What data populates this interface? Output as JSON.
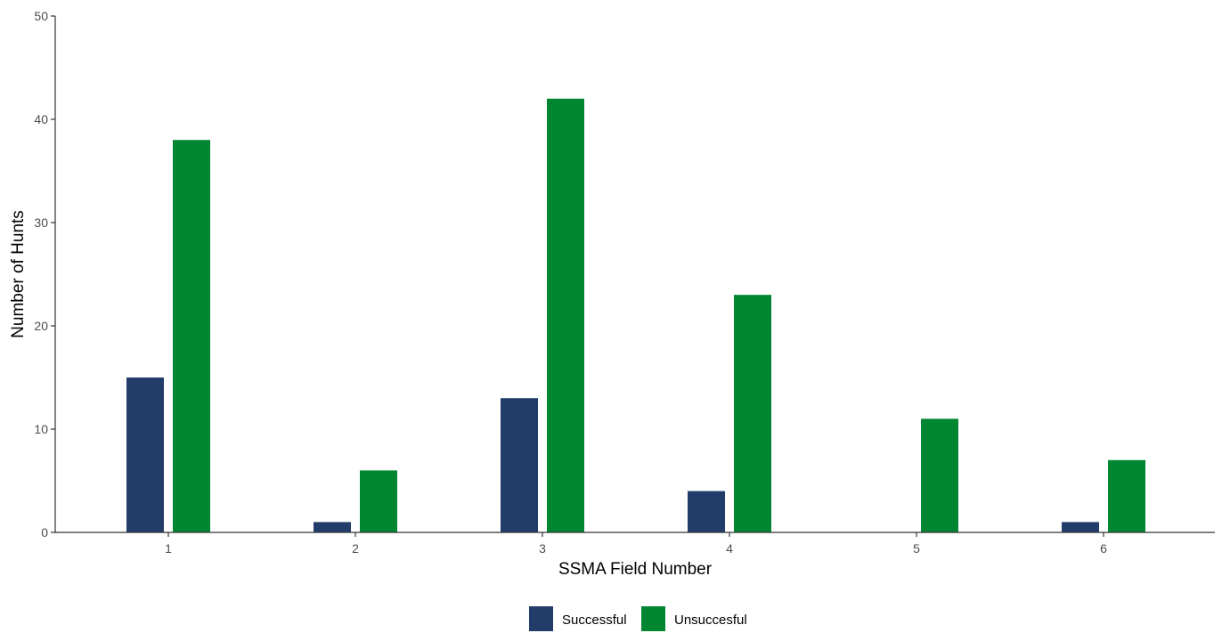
{
  "chart_data": {
    "type": "bar",
    "title": "",
    "xlabel": "SSMA Field Number",
    "ylabel": "Number of Hunts",
    "categories": [
      "1",
      "2",
      "3",
      "4",
      "5",
      "6"
    ],
    "series": [
      {
        "name": "Successful",
        "values": [
          15,
          1,
          13,
          4,
          0,
          1
        ],
        "color": "#233d6b"
      },
      {
        "name": "Unsuccesful",
        "values": [
          38,
          6,
          42,
          23,
          11,
          7
        ],
        "color": "#008631"
      }
    ],
    "ylim": [
      0,
      50
    ],
    "yticks": [
      "0",
      "10",
      "20",
      "30",
      "40",
      "50"
    ],
    "grid": false,
    "legend_position": "bottom"
  }
}
